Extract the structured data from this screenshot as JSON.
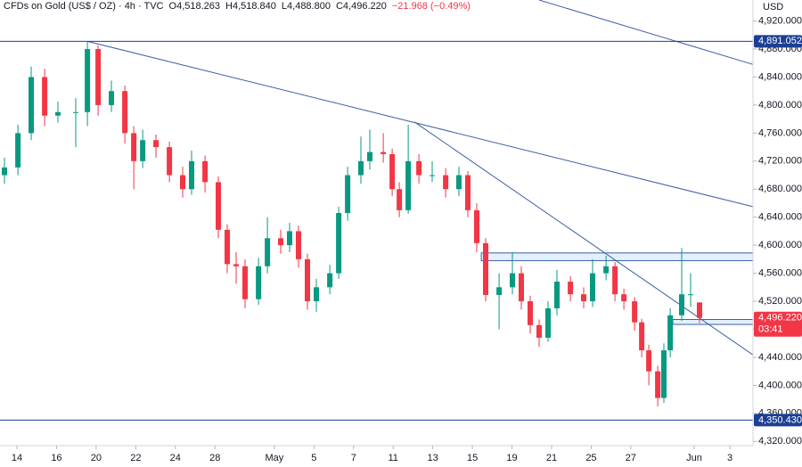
{
  "chart_data": {
    "type": "candlestick",
    "title": "CFDs on Gold (US$ / OZ) · 4h · TVC",
    "ohlc_text": [
      "O4,518.263",
      "H4,518.840",
      "L4,488.800",
      "C4,496.220",
      "−21.968 (−0.49%)"
    ],
    "currency": "USD",
    "up_color": "#089981",
    "down_color": "#f23645",
    "line_color": "#3d5fa8",
    "x": [
      -0.63,
      0.05,
      0.72,
      1.4,
      2.07,
      2.97,
      3.56,
      4.1,
      4.77,
      5.45,
      5.9,
      6.35,
      7.02,
      7.7,
      8.37,
      8.82,
      9.5,
      10.17,
      10.62,
      11.07,
      11.52,
      12.2,
      12.65,
      13.32,
      13.77,
      14.22,
      14.67,
      15.12,
      15.8,
      16.25,
      16.7,
      17.37,
      17.82,
      18.5,
      18.95,
      19.31,
      19.76,
      20.3,
      20.97,
      21.65,
      22.32,
      22.77,
      23.22,
      23.67,
      24.35,
      25.02,
      25.47,
      25.92,
      26.37,
      26.82,
      27.27,
      27.95,
      28.62,
      29.07,
      29.75,
      30.2,
      30.65,
      31.19,
      31.55,
      31.91,
      32.36,
      32.67,
      32.99,
      33.57,
      34.02,
      34.47
    ],
    "open": [
      4700,
      4711,
      4760,
      4840,
      4785,
      4790,
      4790,
      4880,
      4800,
      4820,
      4760,
      4720,
      4750,
      4740,
      4700,
      4680,
      4720,
      4690,
      4622,
      4573,
      4570,
      4523,
      4570,
      4610,
      4600,
      4620,
      4580,
      4520,
      4540,
      4560,
      4646,
      4700,
      4720,
      4733,
      4730,
      4680,
      4650,
      4720,
      4700,
      4700,
      4680,
      4700,
      4650,
      4603,
      4529,
      4540,
      4560,
      4520,
      4486,
      4468,
      4510,
      4548,
      4530,
      4520,
      4560,
      4570,
      4530,
      4520,
      4490,
      4450,
      4420,
      4382,
      4450,
      4500,
      4530,
      4518.263
    ],
    "high": [
      4725,
      4772,
      4855,
      4852,
      4805,
      4810,
      4891,
      4885,
      4835,
      4828,
      4770,
      4765,
      4758,
      4748,
      4712,
      4735,
      4728,
      4698,
      4630,
      4590,
      4580,
      4582,
      4640,
      4622,
      4632,
      4628,
      4588,
      4552,
      4572,
      4655,
      4712,
      4755,
      4765,
      4760,
      4738,
      4690,
      4772,
      4730,
      4720,
      4710,
      4712,
      4706,
      4660,
      4610,
      4560,
      4590,
      4570,
      4528,
      4494,
      4520,
      4565,
      4556,
      4540,
      4580,
      4585,
      4576,
      4538,
      4526,
      4495,
      4458,
      4428,
      4460,
      4510,
      4596,
      4560,
      4518.84
    ],
    "low": [
      4688,
      4700,
      4750,
      4770,
      4775,
      4740,
      4770,
      4785,
      4790,
      4745,
      4680,
      4710,
      4725,
      4690,
      4668,
      4672,
      4675,
      4610,
      4560,
      4545,
      4510,
      4515,
      4560,
      4588,
      4590,
      4568,
      4508,
      4505,
      4530,
      4552,
      4635,
      4688,
      4708,
      4718,
      4670,
      4640,
      4645,
      4688,
      4690,
      4668,
      4670,
      4640,
      4590,
      4520,
      4480,
      4530,
      4508,
      4474,
      4455,
      4462,
      4500,
      4520,
      4510,
      4512,
      4550,
      4520,
      4508,
      4478,
      4440,
      4400,
      4370,
      4375,
      4440,
      4492,
      4512,
      4488.8
    ],
    "close": [
      4711,
      4760,
      4840,
      4785,
      4790,
      4790,
      4880,
      4800,
      4820,
      4760,
      4720,
      4750,
      4740,
      4700,
      4680,
      4720,
      4690,
      4622,
      4573,
      4570,
      4523,
      4570,
      4610,
      4600,
      4620,
      4580,
      4520,
      4540,
      4560,
      4646,
      4700,
      4720,
      4733,
      4730,
      4680,
      4650,
      4720,
      4700,
      4700,
      4680,
      4700,
      4650,
      4603,
      4529,
      4540,
      4560,
      4520,
      4486,
      4468,
      4510,
      4548,
      4530,
      4520,
      4560,
      4570,
      4530,
      4520,
      4490,
      4450,
      4420,
      4382,
      4450,
      4500,
      4530,
      4530,
      4496.22
    ],
    "xlim": [
      -0.855,
      37.17
    ],
    "ylim": [
      4314,
      4950
    ],
    "xticks": [
      {
        "value": 0,
        "label": "14"
      },
      {
        "value": 2,
        "label": "16"
      },
      {
        "value": 4,
        "label": "20"
      },
      {
        "value": 6,
        "label": "22"
      },
      {
        "value": 8,
        "label": "24"
      },
      {
        "value": 10,
        "label": "28"
      },
      {
        "value": 13,
        "label": "May"
      },
      {
        "value": 15,
        "label": "5"
      },
      {
        "value": 17,
        "label": "7"
      },
      {
        "value": 19,
        "label": "11"
      },
      {
        "value": 21,
        "label": "13"
      },
      {
        "value": 23,
        "label": "15"
      },
      {
        "value": 25,
        "label": "19"
      },
      {
        "value": 27,
        "label": "21"
      },
      {
        "value": 29,
        "label": "25"
      },
      {
        "value": 31,
        "label": "27"
      },
      {
        "value": 34.2,
        "label": "Jun"
      },
      {
        "value": 36,
        "label": "3"
      }
    ],
    "yticks": [
      {
        "value": 4320,
        "label": "4,320.000"
      },
      {
        "value": 4360,
        "label": "4,360.000"
      },
      {
        "value": 4400,
        "label": "4,400.000"
      },
      {
        "value": 4440,
        "label": "4,440.000"
      },
      {
        "value": 4480,
        "label": "4,480.000"
      },
      {
        "value": 4520,
        "label": "4,520.000"
      },
      {
        "value": 4560,
        "label": "4,560.000"
      },
      {
        "value": 4600,
        "label": "4,600.000"
      },
      {
        "value": 4640,
        "label": "4,640.000"
      },
      {
        "value": 4680,
        "label": "4,680.000"
      },
      {
        "value": 4720,
        "label": "4,720.000"
      },
      {
        "value": 4760,
        "label": "4,760.000"
      },
      {
        "value": 4800,
        "label": "4,800.000"
      },
      {
        "value": 4840,
        "label": "4,840.000"
      },
      {
        "value": 4880,
        "label": "4,880.000"
      },
      {
        "value": 4920,
        "label": "4,920.000"
      }
    ],
    "trend_lines": [
      {
        "x": [
          3.56,
          37.17
        ],
        "y": [
          4891,
          4655
        ]
      },
      {
        "x": [
          20.07,
          37.17
        ],
        "y": [
          4776,
          4443.5
        ]
      },
      {
        "x": [
          26.37,
          37.17
        ],
        "y": [
          4950,
          4858
        ]
      }
    ],
    "zones": [
      {
        "x": [
          23.45,
          37.17
        ],
        "y": [
          4589,
          4578
        ]
      },
      {
        "x": [
          33.12,
          37.17
        ],
        "y": [
          4494,
          4487
        ]
      }
    ],
    "price_tags": [
      {
        "value": 4891.052,
        "label": "4,891.052",
        "color": "#1c3f94",
        "line": true
      },
      {
        "value": 4496.22,
        "label": "4,496.220",
        "countdown": "03:41",
        "color": "#f23645",
        "line": false
      },
      {
        "value": 4350.43,
        "label": "4,350.430",
        "color": "#1c3f94",
        "line": true
      }
    ]
  }
}
